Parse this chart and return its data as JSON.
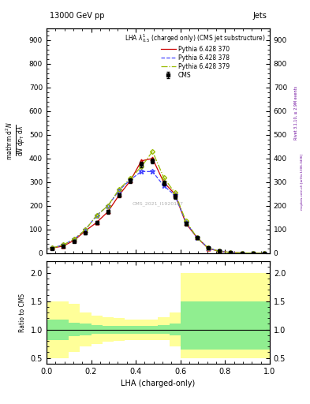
{
  "title_top": "13000 GeV pp",
  "title_right": "Jets",
  "legend_title": "LHA $\\lambda^{1}_{0.5}$ (charged only) (CMS jet substructure)",
  "xlabel": "LHA (charged-only)",
  "ylabel_ratio": "Ratio to CMS",
  "watermark": "CMS_2021_I1920187",
  "right_label": "Rivet 3.1.10, ≥ 2.9M events",
  "right_label2": "mcplots.cern.ch [arXiv:1306.3436]",
  "xlim": [
    0.0,
    1.0
  ],
  "ylim_main": [
    0,
    950
  ],
  "ylim_ratio": [
    0.4,
    2.2
  ],
  "main_yticks": [
    0,
    100,
    200,
    300,
    400,
    500,
    600,
    700,
    800,
    900
  ],
  "ratio_yticks": [
    0.5,
    1.0,
    1.5,
    2.0
  ],
  "cms_x": [
    0.025,
    0.075,
    0.125,
    0.175,
    0.225,
    0.275,
    0.325,
    0.375,
    0.425,
    0.475,
    0.525,
    0.575,
    0.625,
    0.675,
    0.725,
    0.775,
    0.825,
    0.875,
    0.925,
    0.975
  ],
  "cms_y": [
    20,
    28,
    50,
    85,
    130,
    175,
    245,
    305,
    375,
    390,
    295,
    240,
    125,
    65,
    22,
    8,
    3,
    1,
    0,
    0
  ],
  "cms_yerr": [
    3,
    4,
    5,
    6,
    7,
    8,
    9,
    10,
    11,
    11,
    10,
    9,
    8,
    6,
    4,
    3,
    2,
    1,
    0,
    0
  ],
  "py370_x": [
    0.025,
    0.075,
    0.125,
    0.175,
    0.225,
    0.275,
    0.325,
    0.375,
    0.425,
    0.475,
    0.525,
    0.575,
    0.625,
    0.675,
    0.725,
    0.775,
    0.825,
    0.875,
    0.925,
    0.975
  ],
  "py370_y": [
    22,
    30,
    55,
    95,
    130,
    175,
    245,
    305,
    390,
    400,
    300,
    250,
    125,
    65,
    20,
    8,
    3,
    1,
    0,
    0
  ],
  "py378_x": [
    0.025,
    0.075,
    0.125,
    0.175,
    0.225,
    0.275,
    0.325,
    0.375,
    0.425,
    0.475,
    0.525,
    0.575,
    0.625,
    0.675,
    0.725,
    0.775,
    0.825,
    0.875,
    0.925,
    0.975
  ],
  "py378_y": [
    22,
    35,
    60,
    100,
    160,
    200,
    265,
    310,
    345,
    345,
    285,
    245,
    130,
    65,
    22,
    8,
    3,
    1,
    0,
    0
  ],
  "py379_x": [
    0.025,
    0.075,
    0.125,
    0.175,
    0.225,
    0.275,
    0.325,
    0.375,
    0.425,
    0.475,
    0.525,
    0.575,
    0.625,
    0.675,
    0.725,
    0.775,
    0.825,
    0.875,
    0.925,
    0.975
  ],
  "py379_y": [
    22,
    35,
    60,
    100,
    160,
    200,
    270,
    315,
    365,
    430,
    320,
    255,
    135,
    65,
    22,
    8,
    3,
    1,
    0,
    0
  ],
  "cms_color": "black",
  "py370_color": "#cc0000",
  "py378_color": "#4444ff",
  "py379_color": "#99bb00",
  "green_color": "#90ee90",
  "yellow_color": "#ffff99",
  "ratio_bin_edges": [
    0.0,
    0.05,
    0.1,
    0.15,
    0.2,
    0.25,
    0.3,
    0.35,
    0.4,
    0.45,
    0.5,
    0.55,
    0.6,
    0.65,
    0.7,
    0.75,
    0.8,
    0.85,
    0.9,
    0.95,
    1.0
  ],
  "yellow_lo": [
    0.5,
    0.5,
    0.6,
    0.7,
    0.75,
    0.78,
    0.8,
    0.82,
    0.82,
    0.82,
    0.82,
    0.7,
    0.5,
    0.5,
    0.5,
    0.5,
    0.5,
    0.5,
    0.5,
    0.5
  ],
  "yellow_hi": [
    1.5,
    1.5,
    1.45,
    1.3,
    1.25,
    1.22,
    1.2,
    1.18,
    1.18,
    1.18,
    1.22,
    1.3,
    2.0,
    2.0,
    2.0,
    2.0,
    2.0,
    2.0,
    2.0,
    2.0
  ],
  "green_lo": [
    0.82,
    0.82,
    0.88,
    0.9,
    0.92,
    0.93,
    0.93,
    0.93,
    0.93,
    0.93,
    0.93,
    0.9,
    0.65,
    0.65,
    0.65,
    0.65,
    0.65,
    0.65,
    0.65,
    0.65
  ],
  "green_hi": [
    1.18,
    1.18,
    1.12,
    1.1,
    1.08,
    1.07,
    1.07,
    1.07,
    1.07,
    1.07,
    1.08,
    1.1,
    1.5,
    1.5,
    1.5,
    1.5,
    1.5,
    1.5,
    1.5,
    1.5
  ]
}
